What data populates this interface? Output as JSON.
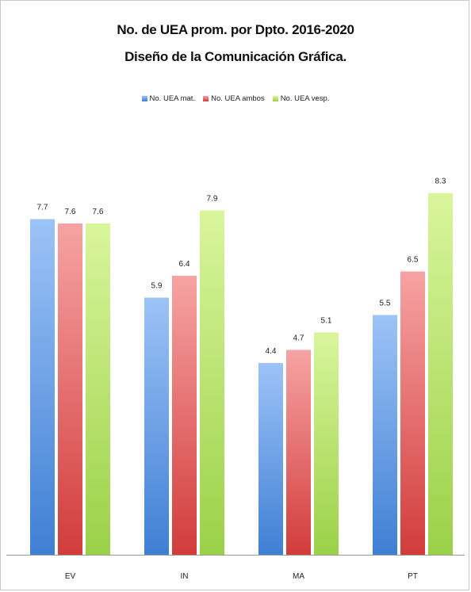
{
  "chart_data": {
    "type": "bar",
    "title": "No. de UEA prom. por  Dpto. 2016-2020",
    "subtitle": "Diseño de la Comunicación  Gráfica.",
    "categories": [
      "EV",
      "IN",
      "MA",
      "PT"
    ],
    "series": [
      {
        "name": "No. UEA mat.",
        "values": [
          7.7,
          5.9,
          4.4,
          5.5
        ]
      },
      {
        "name": "No. UEA ambos",
        "values": [
          7.6,
          6.4,
          4.7,
          6.5
        ]
      },
      {
        "name": "No. UEA vesp.",
        "values": [
          7.6,
          7.9,
          5.1,
          8.3
        ]
      }
    ],
    "data_labels": [
      [
        "7.7",
        "5.9",
        "4.4",
        "5.5"
      ],
      [
        "7.6",
        "6.4",
        "4.7",
        "6.5"
      ],
      [
        "7.6",
        "7.9",
        "5.1",
        "8.3"
      ]
    ],
    "ylim": [
      0,
      9
    ],
    "grid": false,
    "legend": "top",
    "colors": [
      {
        "top": "#9dc3f7",
        "bottom": "#3f7fd4"
      },
      {
        "top": "#f7a3a3",
        "bottom": "#d23c3c"
      },
      {
        "top": "#d9f59c",
        "bottom": "#9bd148"
      }
    ]
  }
}
